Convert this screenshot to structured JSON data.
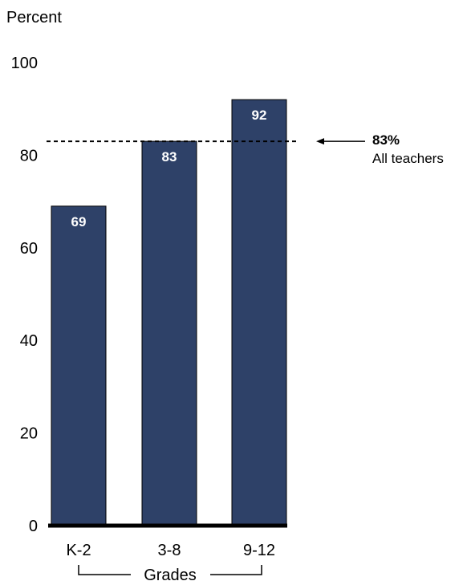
{
  "chart_data": {
    "type": "bar",
    "title": "",
    "ylabel": "Percent",
    "xlabel": "Grades",
    "ylim": [
      0,
      100
    ],
    "yticks": [
      "0",
      "20",
      "40",
      "60",
      "80",
      "100"
    ],
    "categories": [
      "K-2",
      "3-8",
      "9-12"
    ],
    "values": [
      69,
      83,
      92
    ],
    "data_labels": [
      "69",
      "83",
      "92"
    ],
    "grid": false,
    "bar_color": "#2e4168",
    "reference_line": {
      "value": 83,
      "label_value": "83%",
      "label_text": "All teachers",
      "style": "dashed"
    }
  }
}
